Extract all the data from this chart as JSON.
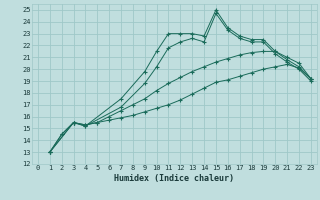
{
  "xlabel": "Humidex (Indice chaleur)",
  "background_color": "#c0dede",
  "grid_color": "#9fc8c8",
  "line_color": "#1a6b5a",
  "xlim": [
    -0.5,
    23.5
  ],
  "ylim": [
    12,
    25.5
  ],
  "xticks": [
    0,
    1,
    2,
    3,
    4,
    5,
    6,
    7,
    8,
    9,
    10,
    11,
    12,
    13,
    14,
    15,
    16,
    17,
    18,
    19,
    20,
    21,
    22,
    23
  ],
  "yticks": [
    12,
    13,
    14,
    15,
    16,
    17,
    18,
    19,
    20,
    21,
    22,
    23,
    24,
    25
  ],
  "series": [
    {
      "x": [
        1,
        2,
        3,
        4,
        7,
        9,
        10,
        11,
        12,
        13,
        14,
        15,
        16,
        17,
        18,
        19,
        20,
        21,
        22,
        23
      ],
      "y": [
        13,
        14.5,
        15.5,
        15.2,
        17.5,
        19.8,
        21.5,
        23.0,
        23.0,
        23.0,
        22.8,
        25.0,
        23.5,
        22.8,
        22.5,
        22.5,
        21.5,
        20.8,
        20.2,
        19.2
      ]
    },
    {
      "x": [
        1,
        2,
        3,
        4,
        7,
        9,
        10,
        11,
        12,
        13,
        14,
        15,
        16,
        17,
        18,
        19,
        20,
        21,
        22,
        23
      ],
      "y": [
        13,
        14.5,
        15.5,
        15.2,
        16.8,
        18.8,
        20.2,
        21.8,
        22.3,
        22.6,
        22.3,
        24.7,
        23.3,
        22.6,
        22.3,
        22.3,
        21.3,
        20.6,
        20.0,
        19.0
      ]
    },
    {
      "x": [
        1,
        3,
        4,
        5,
        6,
        7,
        8,
        9,
        10,
        11,
        12,
        13,
        14,
        15,
        16,
        17,
        18,
        19,
        20,
        21,
        22,
        23
      ],
      "y": [
        13,
        15.5,
        15.3,
        15.5,
        16.0,
        16.5,
        17.0,
        17.5,
        18.2,
        18.8,
        19.3,
        19.8,
        20.2,
        20.6,
        20.9,
        21.2,
        21.4,
        21.5,
        21.5,
        21.0,
        20.5,
        19.2
      ]
    },
    {
      "x": [
        1,
        3,
        4,
        5,
        6,
        7,
        8,
        9,
        10,
        11,
        12,
        13,
        14,
        15,
        16,
        17,
        18,
        19,
        20,
        21,
        22,
        23
      ],
      "y": [
        13,
        15.5,
        15.3,
        15.5,
        15.7,
        15.9,
        16.1,
        16.4,
        16.7,
        17.0,
        17.4,
        17.9,
        18.4,
        18.9,
        19.1,
        19.4,
        19.7,
        20.0,
        20.2,
        20.4,
        20.1,
        19.2
      ]
    }
  ]
}
